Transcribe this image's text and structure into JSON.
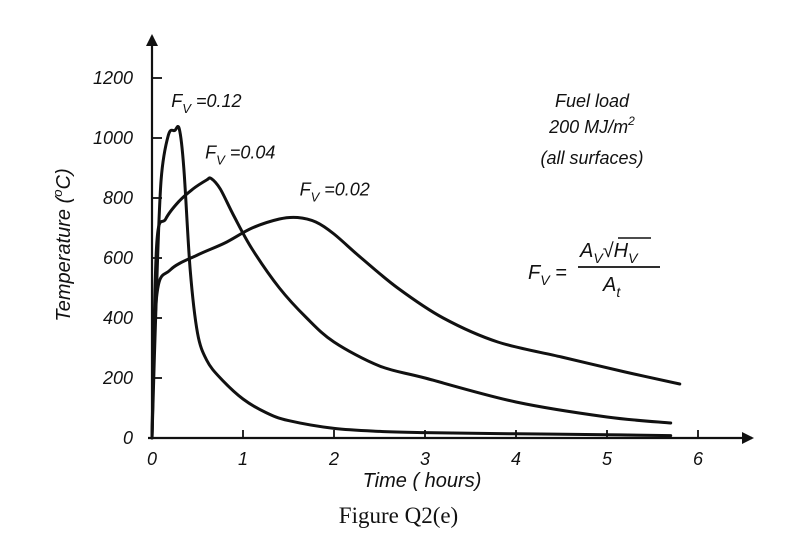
{
  "caption": "Figure Q2(e)",
  "chart_data": {
    "type": "line",
    "xlabel": "Time ( hours)",
    "ylabel": "Temperature (°C)",
    "xlim": [
      0,
      6.4
    ],
    "ylim": [
      0,
      1300
    ],
    "x_ticks": [
      0,
      1,
      2,
      3,
      4,
      5,
      6
    ],
    "y_ticks": [
      0,
      200,
      400,
      600,
      800,
      1000,
      1200
    ],
    "grid": false,
    "annotations": {
      "fuel_load_line1": "Fuel load",
      "fuel_load_line2": "200 MJ/m",
      "fuel_load_sup": "2",
      "fuel_load_line3": "(all surfaces)",
      "formula": "F_V = A_V √H_V / A_t"
    },
    "series": [
      {
        "name": "F_V=0.12",
        "label": {
          "pre": "F",
          "sub": "V",
          "post": " =0.12"
        },
        "x": [
          0,
          0.05,
          0.1,
          0.18,
          0.25,
          0.3,
          0.35,
          0.42,
          0.5,
          0.6,
          0.75,
          1.0,
          1.25,
          1.5,
          2.0,
          2.5,
          3.0,
          4.0,
          5.0,
          5.7
        ],
        "y": [
          0,
          500,
          860,
          1010,
          1025,
          1030,
          900,
          560,
          350,
          260,
          200,
          130,
          85,
          58,
          32,
          22,
          18,
          14,
          11,
          8
        ]
      },
      {
        "name": "F_V=0.04",
        "label": {
          "pre": "F",
          "sub": "V",
          "post": " =0.04"
        },
        "x": [
          0,
          0.05,
          0.15,
          0.3,
          0.45,
          0.6,
          0.65,
          0.75,
          0.9,
          1.1,
          1.4,
          1.7,
          2.0,
          2.5,
          3.0,
          4.0,
          5.0,
          5.7
        ],
        "y": [
          0,
          640,
          730,
          790,
          830,
          860,
          865,
          830,
          740,
          630,
          500,
          400,
          320,
          240,
          200,
          120,
          70,
          50
        ]
      },
      {
        "name": "F_V=0.02",
        "label": {
          "pre": "F",
          "sub": "V",
          "post": " =0.02"
        },
        "x": [
          0,
          0.05,
          0.2,
          0.5,
          0.8,
          1.1,
          1.4,
          1.6,
          1.8,
          2.0,
          2.3,
          2.7,
          3.2,
          3.8,
          4.5,
          5.2,
          5.8
        ],
        "y": [
          0,
          470,
          560,
          610,
          650,
          700,
          730,
          735,
          720,
          680,
          600,
          500,
          400,
          320,
          270,
          220,
          180
        ]
      }
    ]
  }
}
